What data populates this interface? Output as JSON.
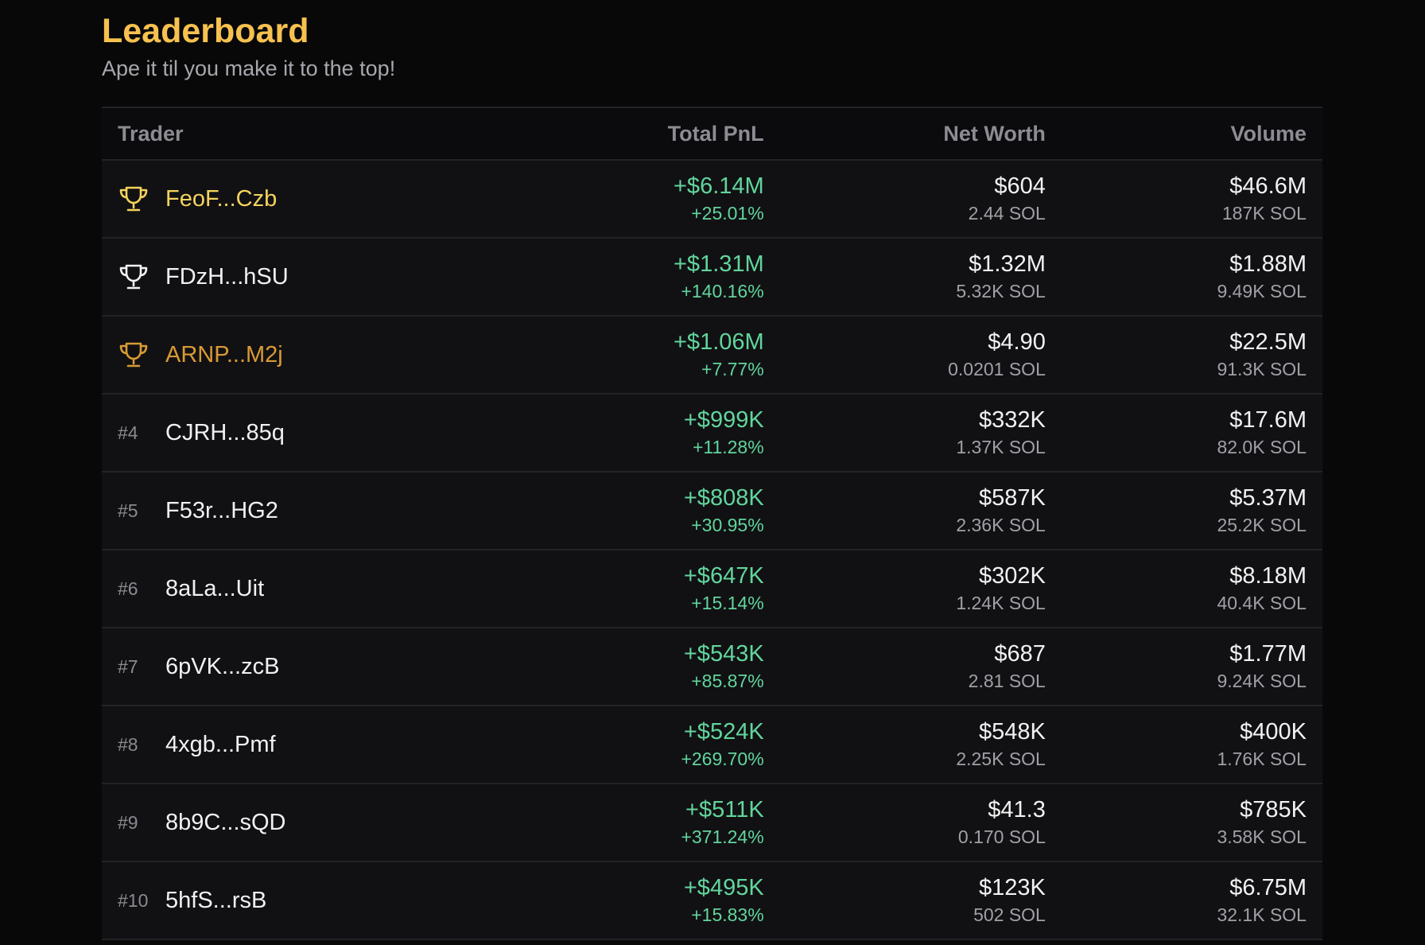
{
  "header": {
    "title": "Leaderboard",
    "subtitle": "Ape it til you make it to the top!"
  },
  "columns": {
    "trader": "Trader",
    "pnl": "Total PnL",
    "net_worth": "Net Worth",
    "volume": "Volume"
  },
  "colors": {
    "accent_title": "#f7c14f",
    "gold": "#f5d35c",
    "silver": "#f1f1f4",
    "bronze": "#d99a34",
    "positive": "#62d59c"
  },
  "rows": [
    {
      "rank": "",
      "icon": "trophy-icon",
      "tier": "gold",
      "trader": "FeoF...Czb",
      "pnl": "+$6.14M",
      "pnl_pct": "+25.01%",
      "worth": "$604",
      "worth_sol": "2.44 SOL",
      "volume": "$46.6M",
      "volume_sol": "187K SOL"
    },
    {
      "rank": "",
      "icon": "trophy-icon",
      "tier": "silver",
      "trader": "FDzH...hSU",
      "pnl": "+$1.31M",
      "pnl_pct": "+140.16%",
      "worth": "$1.32M",
      "worth_sol": "5.32K SOL",
      "volume": "$1.88M",
      "volume_sol": "9.49K SOL"
    },
    {
      "rank": "",
      "icon": "trophy-icon",
      "tier": "bronze",
      "trader": "ARNP...M2j",
      "pnl": "+$1.06M",
      "pnl_pct": "+7.77%",
      "worth": "$4.90",
      "worth_sol": "0.0201 SOL",
      "volume": "$22.5M",
      "volume_sol": "91.3K SOL"
    },
    {
      "rank": "#4",
      "tier": "",
      "trader": "CJRH...85q",
      "pnl": "+$999K",
      "pnl_pct": "+11.28%",
      "worth": "$332K",
      "worth_sol": "1.37K SOL",
      "volume": "$17.6M",
      "volume_sol": "82.0K SOL"
    },
    {
      "rank": "#5",
      "tier": "",
      "trader": "F53r...HG2",
      "pnl": "+$808K",
      "pnl_pct": "+30.95%",
      "worth": "$587K",
      "worth_sol": "2.36K SOL",
      "volume": "$5.37M",
      "volume_sol": "25.2K SOL"
    },
    {
      "rank": "#6",
      "tier": "",
      "trader": "8aLa...Uit",
      "pnl": "+$647K",
      "pnl_pct": "+15.14%",
      "worth": "$302K",
      "worth_sol": "1.24K SOL",
      "volume": "$8.18M",
      "volume_sol": "40.4K SOL"
    },
    {
      "rank": "#7",
      "tier": "",
      "trader": "6pVK...zcB",
      "pnl": "+$543K",
      "pnl_pct": "+85.87%",
      "worth": "$687",
      "worth_sol": "2.81 SOL",
      "volume": "$1.77M",
      "volume_sol": "9.24K SOL"
    },
    {
      "rank": "#8",
      "tier": "",
      "trader": "4xgb...Pmf",
      "pnl": "+$524K",
      "pnl_pct": "+269.70%",
      "worth": "$548K",
      "worth_sol": "2.25K SOL",
      "volume": "$400K",
      "volume_sol": "1.76K SOL"
    },
    {
      "rank": "#9",
      "tier": "",
      "trader": "8b9C...sQD",
      "pnl": "+$511K",
      "pnl_pct": "+371.24%",
      "worth": "$41.3",
      "worth_sol": "0.170 SOL",
      "volume": "$785K",
      "volume_sol": "3.58K SOL"
    },
    {
      "rank": "#10",
      "tier": "",
      "trader": "5hfS...rsB",
      "pnl": "+$495K",
      "pnl_pct": "+15.83%",
      "worth": "$123K",
      "worth_sol": "502 SOL",
      "volume": "$6.75M",
      "volume_sol": "32.1K SOL"
    }
  ]
}
